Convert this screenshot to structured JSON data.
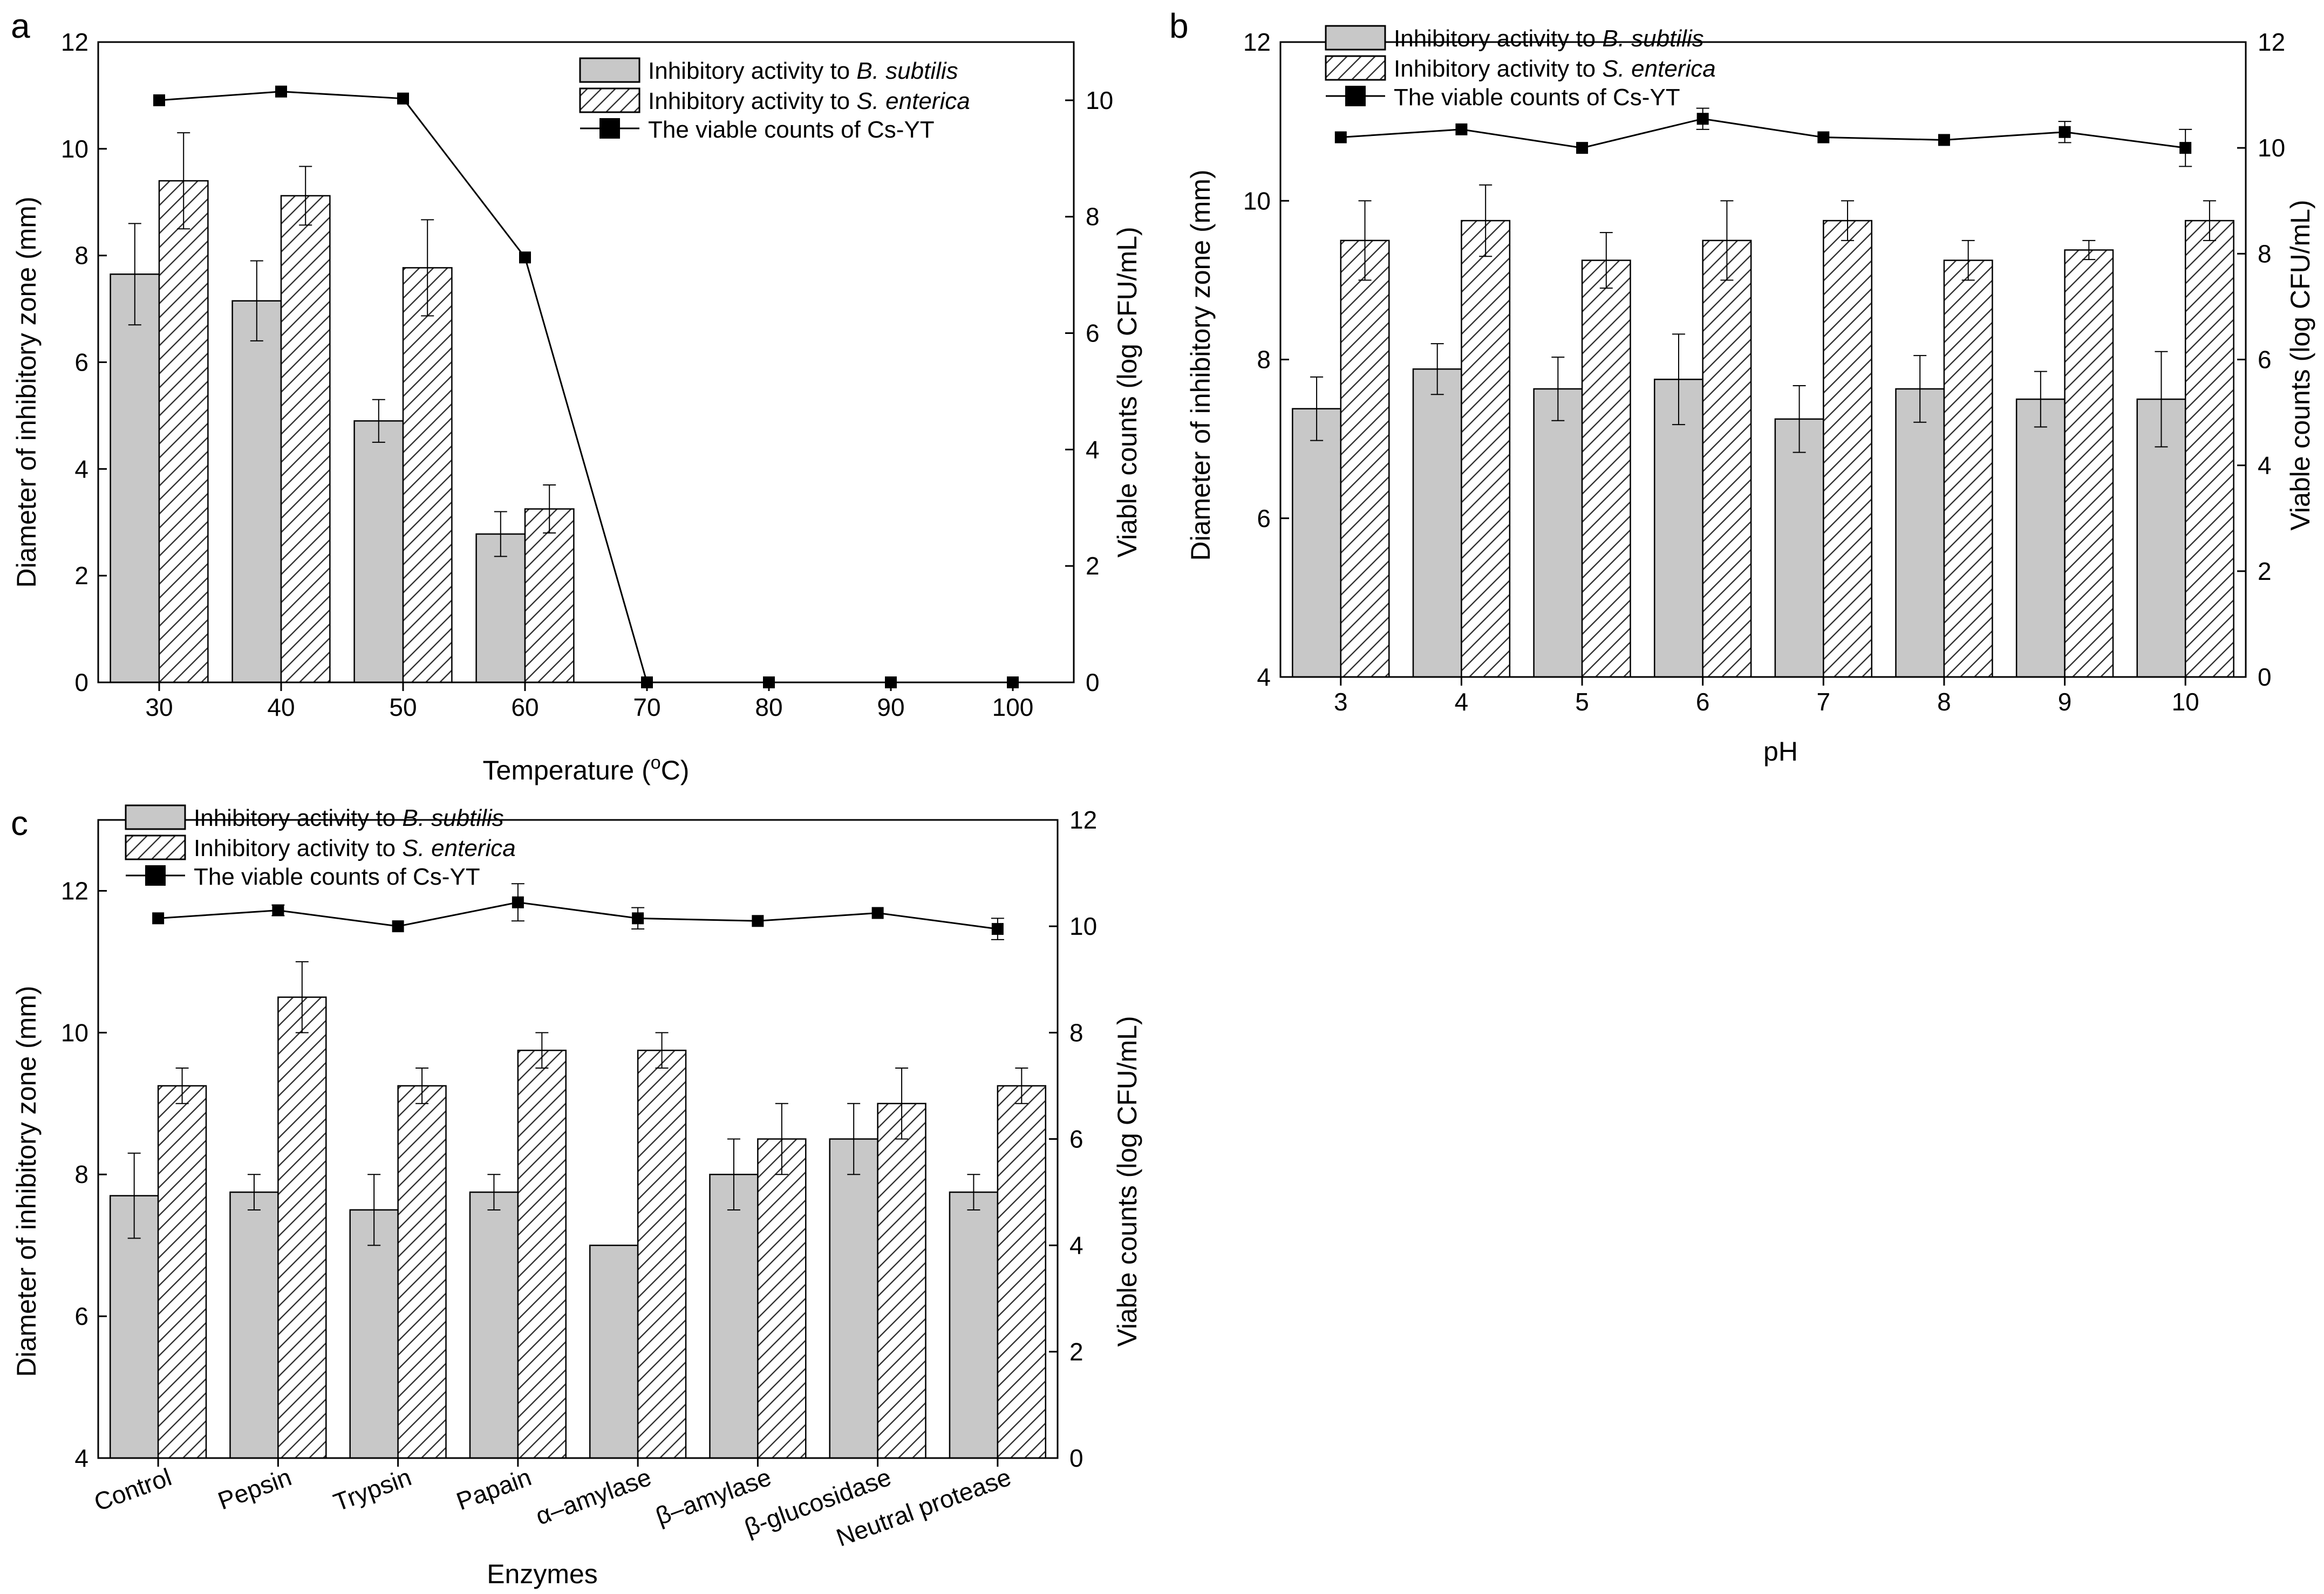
{
  "figure": {
    "legend_items": {
      "bsub_prefix": "Inhibitory activity to ",
      "bsub_species": "B. subtilis",
      "sent_prefix": "Inhibitory activity to ",
      "sent_species": "S. enterica",
      "viable": "The viable counts of Cs-YT"
    },
    "colors": {
      "bar_gray": "#c8c8c8",
      "hatch_fill": "#ffffff",
      "line": "#000000"
    }
  },
  "chart_data": [
    {
      "panel": "a",
      "type": "bar",
      "title": "",
      "xlabel": "Temperature (°C)",
      "xlabel_main": "Temperature (",
      "xlabel_sup": "o",
      "xlabel_unit": "C)",
      "ylabel": "Diameter of inhibitory zone (mm)",
      "y2label": "Viable counts (log CFU/mL)",
      "categories": [
        "30",
        "40",
        "50",
        "60",
        "70",
        "80",
        "90",
        "100"
      ],
      "ylim": [
        0,
        12
      ],
      "yticks": [
        "0",
        "2",
        "4",
        "6",
        "8",
        "10",
        "12"
      ],
      "y2lim": [
        0,
        11
      ],
      "y2ticks": [
        "0",
        "2",
        "4",
        "6",
        "8",
        "10"
      ],
      "series": [
        {
          "name": "Inhibitory activity to B. subtilis",
          "kind": "bar-gray",
          "values": [
            7.65,
            7.15,
            4.9,
            2.78,
            0,
            0,
            0,
            0
          ],
          "errors": [
            0.95,
            0.75,
            0.4,
            0.42,
            0,
            0,
            0,
            0
          ]
        },
        {
          "name": "Inhibitory activity to S. enterica",
          "kind": "bar-hatch",
          "values": [
            9.4,
            9.12,
            7.77,
            3.25,
            0,
            0,
            0,
            0
          ],
          "errors": [
            0.9,
            0.55,
            0.9,
            0.45,
            0,
            0,
            0,
            0
          ]
        },
        {
          "name": "The viable counts of Cs-YT",
          "kind": "line",
          "axis": "y2",
          "values": [
            10.0,
            10.15,
            10.03,
            7.3,
            0,
            0,
            0,
            0
          ],
          "errors": [
            0,
            0,
            0,
            0,
            0,
            0,
            0,
            0
          ]
        }
      ]
    },
    {
      "panel": "b",
      "type": "bar",
      "title": "",
      "xlabel": "pH",
      "ylabel": "Diameter of inhibitory zone (mm)",
      "y2label": "Viable counts (log CFU/mL)",
      "categories": [
        "3",
        "4",
        "5",
        "6",
        "7",
        "8",
        "9",
        "10"
      ],
      "ylim": [
        4,
        12
      ],
      "yticks": [
        "4",
        "6",
        "8",
        "10",
        "12"
      ],
      "y2lim": [
        0,
        12
      ],
      "y2ticks": [
        "0",
        "2",
        "4",
        "6",
        "8",
        "10",
        "12"
      ],
      "series": [
        {
          "name": "Inhibitory activity to B. subtilis",
          "kind": "bar-gray",
          "values": [
            7.38,
            7.88,
            7.63,
            7.75,
            7.25,
            7.63,
            7.5,
            7.5
          ],
          "errors": [
            0.4,
            0.32,
            0.4,
            0.57,
            0.42,
            0.42,
            0.35,
            0.6
          ]
        },
        {
          "name": "Inhibitory activity to S. enterica",
          "kind": "bar-hatch",
          "values": [
            9.5,
            9.75,
            9.25,
            9.5,
            9.75,
            9.25,
            9.38,
            9.75
          ],
          "errors": [
            0.5,
            0.45,
            0.35,
            0.5,
            0.25,
            0.25,
            0.12,
            0.25
          ]
        },
        {
          "name": "The viable counts of Cs-YT",
          "kind": "line",
          "axis": "y2",
          "values": [
            10.2,
            10.35,
            10.0,
            10.55,
            10.2,
            10.15,
            10.3,
            10.0
          ],
          "errors": [
            0,
            0,
            0,
            0.2,
            0,
            0,
            0.2,
            0.35
          ]
        }
      ]
    },
    {
      "panel": "c",
      "type": "bar",
      "title": "",
      "xlabel": "Enzymes",
      "ylabel": "Diameter of inhibitory zone (mm)",
      "y2label": "Viable counts (log CFU/mL)",
      "categories": [
        "Control",
        "Pepsin",
        "Trypsin",
        "Papain",
        "α–amylase",
        "β–amylase",
        "β-glucosidase",
        "Neutral protease"
      ],
      "ylim": [
        4,
        13
      ],
      "yticks": [
        "4",
        "6",
        "8",
        "10",
        "12"
      ],
      "y2lim": [
        0,
        12
      ],
      "y2ticks": [
        "0",
        "2",
        "4",
        "6",
        "8",
        "10",
        "12"
      ],
      "series": [
        {
          "name": "Inhibitory activity to B. subtilis",
          "kind": "bar-gray",
          "values": [
            7.7,
            7.75,
            7.5,
            7.75,
            7.0,
            8.0,
            8.5,
            7.75
          ],
          "errors": [
            0.6,
            0.25,
            0.5,
            0.25,
            0,
            0.5,
            0.5,
            0.25
          ]
        },
        {
          "name": "Inhibitory activity to S. enterica",
          "kind": "bar-hatch",
          "values": [
            9.25,
            10.5,
            9.25,
            9.75,
            9.75,
            8.5,
            9.0,
            9.25
          ],
          "errors": [
            0.25,
            0.5,
            0.25,
            0.25,
            0.25,
            0.5,
            0.5,
            0.25
          ]
        },
        {
          "name": "The viable counts of Cs-YT",
          "kind": "line",
          "axis": "y2",
          "values": [
            10.15,
            10.3,
            10.0,
            10.45,
            10.15,
            10.1,
            10.25,
            9.95
          ],
          "errors": [
            0,
            0.1,
            0,
            0.35,
            0.2,
            0,
            0,
            0.2
          ]
        }
      ]
    }
  ]
}
